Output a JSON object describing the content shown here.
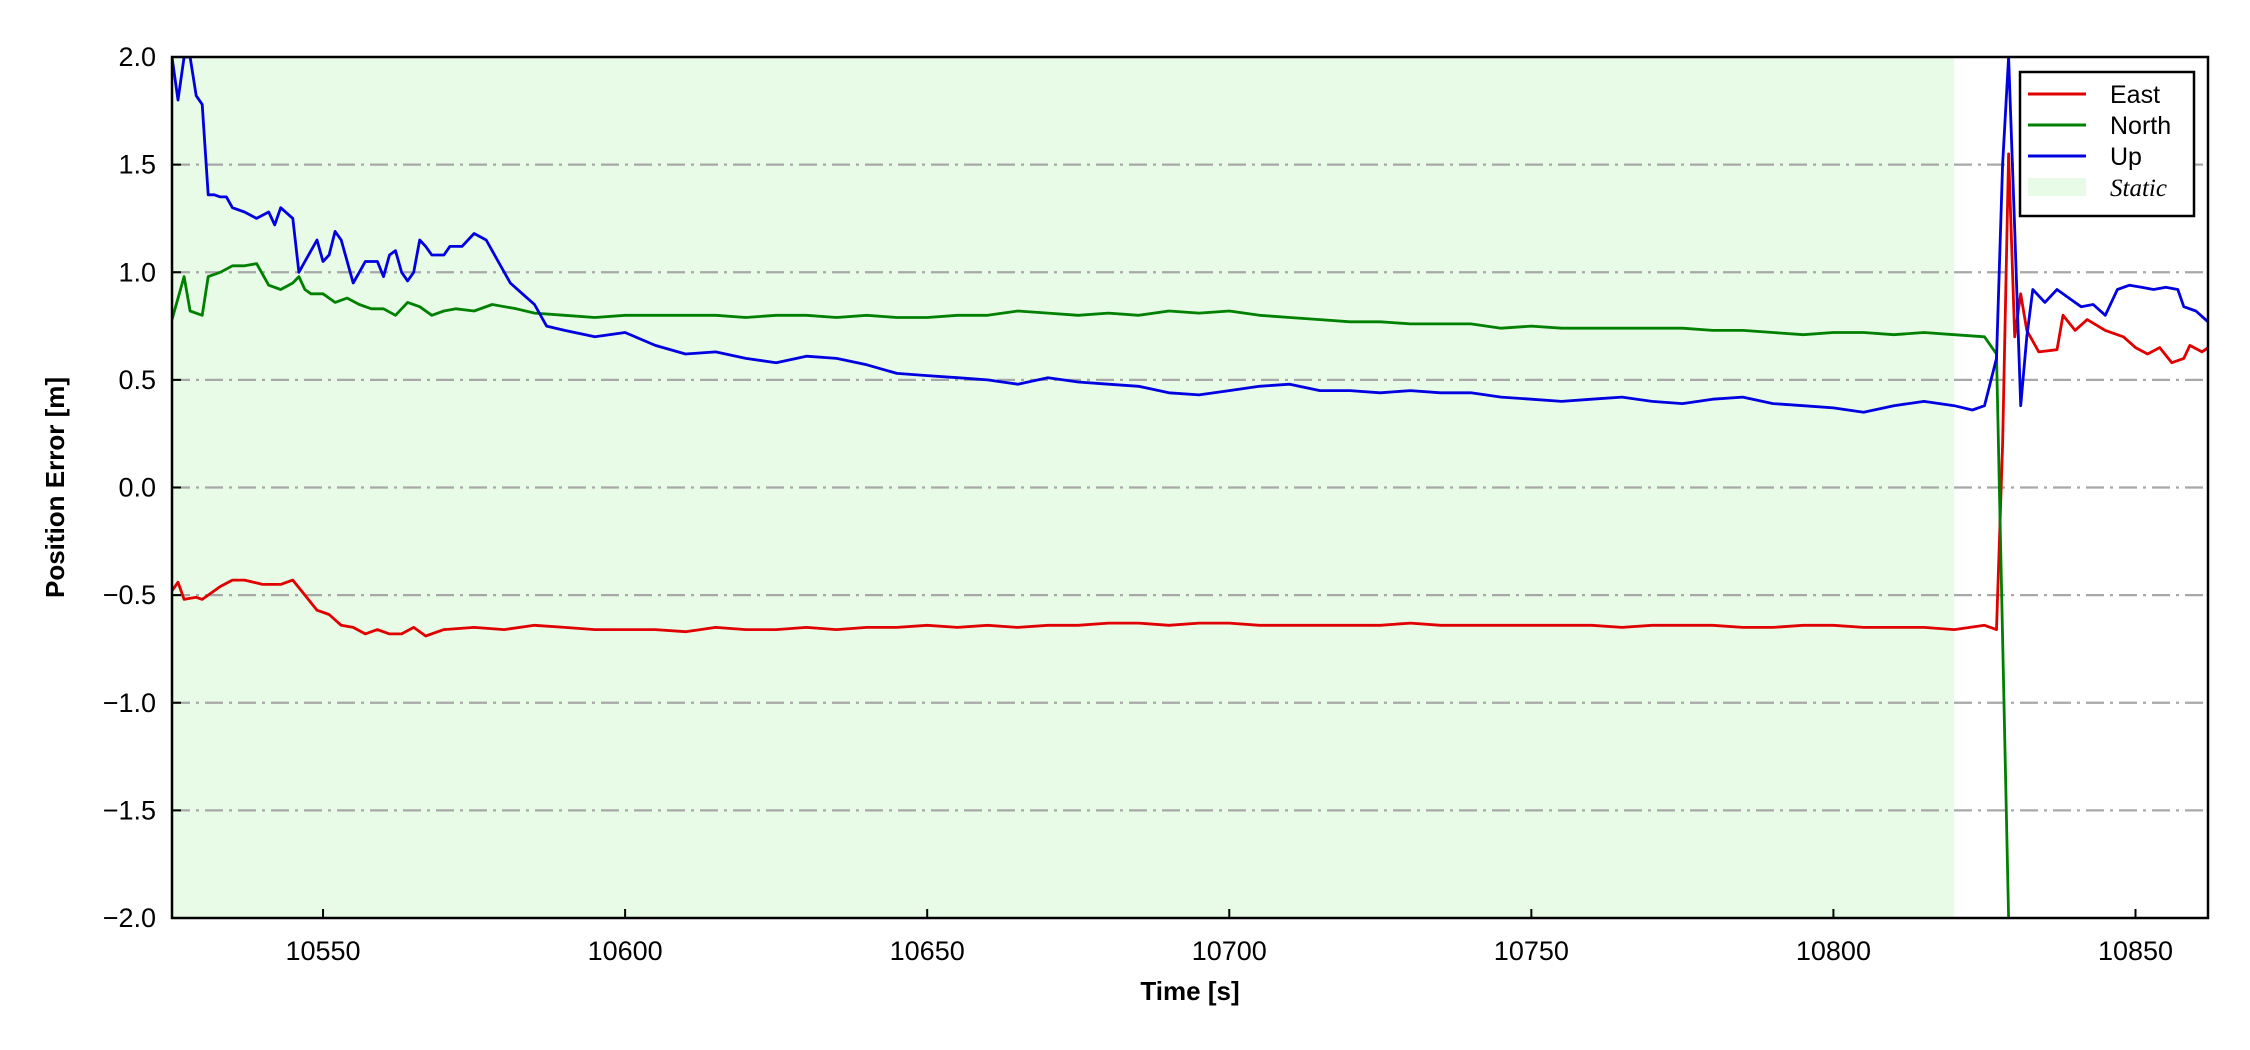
{
  "chart_data": {
    "type": "line",
    "title": "",
    "xlabel": "Time [s]",
    "ylabel": "Position Error [m]",
    "xlim": [
      10525,
      10862
    ],
    "ylim": [
      -2.0,
      2.0
    ],
    "x_ticks": [
      10550,
      10600,
      10650,
      10700,
      10750,
      10800,
      10850
    ],
    "x_tick_labels": [
      "10550",
      "10600",
      "10650",
      "10700",
      "10750",
      "10800",
      "10850"
    ],
    "y_ticks": [
      2.0,
      1.5,
      1.0,
      0.5,
      0.0,
      -0.5,
      -1.0,
      -1.5,
      -2.0
    ],
    "y_tick_labels": [
      "2.0",
      "1.5",
      "1.0",
      "0.5",
      "0.0",
      "−0.5",
      "−1.0",
      "−1.5",
      "−2.0"
    ],
    "grid": "horizontal dash-dot",
    "legend_position": "top-right",
    "static_region": {
      "label": "Static",
      "x_start": 10525,
      "x_end": 10820,
      "color": "#e8fbe6"
    },
    "series": [
      {
        "name": "East",
        "color": "#e00000",
        "points": [
          [
            10525,
            -0.48
          ],
          [
            10526,
            -0.44
          ],
          [
            10527,
            -0.52
          ],
          [
            10529,
            -0.51
          ],
          [
            10530,
            -0.52
          ],
          [
            10533,
            -0.46
          ],
          [
            10535,
            -0.43
          ],
          [
            10537,
            -0.43
          ],
          [
            10540,
            -0.45
          ],
          [
            10543,
            -0.45
          ],
          [
            10545,
            -0.43
          ],
          [
            10547,
            -0.5
          ],
          [
            10549,
            -0.57
          ],
          [
            10551,
            -0.59
          ],
          [
            10553,
            -0.64
          ],
          [
            10555,
            -0.65
          ],
          [
            10557,
            -0.68
          ],
          [
            10559,
            -0.66
          ],
          [
            10561,
            -0.68
          ],
          [
            10563,
            -0.68
          ],
          [
            10565,
            -0.65
          ],
          [
            10567,
            -0.69
          ],
          [
            10570,
            -0.66
          ],
          [
            10575,
            -0.65
          ],
          [
            10580,
            -0.66
          ],
          [
            10585,
            -0.64
          ],
          [
            10590,
            -0.65
          ],
          [
            10595,
            -0.66
          ],
          [
            10600,
            -0.66
          ],
          [
            10605,
            -0.66
          ],
          [
            10610,
            -0.67
          ],
          [
            10615,
            -0.65
          ],
          [
            10620,
            -0.66
          ],
          [
            10625,
            -0.66
          ],
          [
            10630,
            -0.65
          ],
          [
            10635,
            -0.66
          ],
          [
            10640,
            -0.65
          ],
          [
            10645,
            -0.65
          ],
          [
            10650,
            -0.64
          ],
          [
            10655,
            -0.65
          ],
          [
            10660,
            -0.64
          ],
          [
            10665,
            -0.65
          ],
          [
            10670,
            -0.64
          ],
          [
            10675,
            -0.64
          ],
          [
            10680,
            -0.63
          ],
          [
            10685,
            -0.63
          ],
          [
            10690,
            -0.64
          ],
          [
            10695,
            -0.63
          ],
          [
            10700,
            -0.63
          ],
          [
            10705,
            -0.64
          ],
          [
            10710,
            -0.64
          ],
          [
            10715,
            -0.64
          ],
          [
            10720,
            -0.64
          ],
          [
            10725,
            -0.64
          ],
          [
            10730,
            -0.63
          ],
          [
            10735,
            -0.64
          ],
          [
            10740,
            -0.64
          ],
          [
            10745,
            -0.64
          ],
          [
            10750,
            -0.64
          ],
          [
            10755,
            -0.64
          ],
          [
            10760,
            -0.64
          ],
          [
            10765,
            -0.65
          ],
          [
            10770,
            -0.64
          ],
          [
            10775,
            -0.64
          ],
          [
            10780,
            -0.64
          ],
          [
            10785,
            -0.65
          ],
          [
            10790,
            -0.65
          ],
          [
            10795,
            -0.64
          ],
          [
            10800,
            -0.64
          ],
          [
            10805,
            -0.65
          ],
          [
            10810,
            -0.65
          ],
          [
            10815,
            -0.65
          ],
          [
            10820,
            -0.66
          ],
          [
            10825,
            -0.64
          ],
          [
            10827,
            -0.66
          ],
          [
            10828,
            0.2
          ],
          [
            10829,
            1.55
          ],
          [
            10830,
            0.7
          ],
          [
            10831,
            0.9
          ],
          [
            10832,
            0.73
          ],
          [
            10834,
            0.63
          ],
          [
            10837,
            0.64
          ],
          [
            10838,
            0.8
          ],
          [
            10840,
            0.73
          ],
          [
            10842,
            0.78
          ],
          [
            10845,
            0.73
          ],
          [
            10848,
            0.7
          ],
          [
            10850,
            0.65
          ],
          [
            10852,
            0.62
          ],
          [
            10854,
            0.65
          ],
          [
            10856,
            0.58
          ],
          [
            10858,
            0.6
          ],
          [
            10859,
            0.66
          ],
          [
            10861,
            0.63
          ],
          [
            10862,
            0.65
          ]
        ]
      },
      {
        "name": "North",
        "color": "#008000",
        "points": [
          [
            10525,
            0.78
          ],
          [
            10527,
            0.98
          ],
          [
            10528,
            0.82
          ],
          [
            10530,
            0.8
          ],
          [
            10531,
            0.98
          ],
          [
            10533,
            1.0
          ],
          [
            10535,
            1.03
          ],
          [
            10537,
            1.03
          ],
          [
            10539,
            1.04
          ],
          [
            10541,
            0.94
          ],
          [
            10543,
            0.92
          ],
          [
            10545,
            0.95
          ],
          [
            10546,
            0.98
          ],
          [
            10547,
            0.92
          ],
          [
            10548,
            0.9
          ],
          [
            10550,
            0.9
          ],
          [
            10552,
            0.86
          ],
          [
            10554,
            0.88
          ],
          [
            10556,
            0.85
          ],
          [
            10558,
            0.83
          ],
          [
            10560,
            0.83
          ],
          [
            10562,
            0.8
          ],
          [
            10564,
            0.86
          ],
          [
            10566,
            0.84
          ],
          [
            10568,
            0.8
          ],
          [
            10570,
            0.82
          ],
          [
            10572,
            0.83
          ],
          [
            10575,
            0.82
          ],
          [
            10578,
            0.85
          ],
          [
            10582,
            0.83
          ],
          [
            10585,
            0.81
          ],
          [
            10590,
            0.8
          ],
          [
            10595,
            0.79
          ],
          [
            10600,
            0.8
          ],
          [
            10605,
            0.8
          ],
          [
            10610,
            0.8
          ],
          [
            10615,
            0.8
          ],
          [
            10620,
            0.79
          ],
          [
            10625,
            0.8
          ],
          [
            10630,
            0.8
          ],
          [
            10635,
            0.79
          ],
          [
            10640,
            0.8
          ],
          [
            10645,
            0.79
          ],
          [
            10650,
            0.79
          ],
          [
            10655,
            0.8
          ],
          [
            10660,
            0.8
          ],
          [
            10665,
            0.82
          ],
          [
            10670,
            0.81
          ],
          [
            10675,
            0.8
          ],
          [
            10680,
            0.81
          ],
          [
            10685,
            0.8
          ],
          [
            10690,
            0.82
          ],
          [
            10695,
            0.81
          ],
          [
            10700,
            0.82
          ],
          [
            10705,
            0.8
          ],
          [
            10710,
            0.79
          ],
          [
            10715,
            0.78
          ],
          [
            10720,
            0.77
          ],
          [
            10725,
            0.77
          ],
          [
            10730,
            0.76
          ],
          [
            10735,
            0.76
          ],
          [
            10740,
            0.76
          ],
          [
            10745,
            0.74
          ],
          [
            10750,
            0.75
          ],
          [
            10755,
            0.74
          ],
          [
            10760,
            0.74
          ],
          [
            10765,
            0.74
          ],
          [
            10770,
            0.74
          ],
          [
            10775,
            0.74
          ],
          [
            10780,
            0.73
          ],
          [
            10785,
            0.73
          ],
          [
            10790,
            0.72
          ],
          [
            10795,
            0.71
          ],
          [
            10800,
            0.72
          ],
          [
            10805,
            0.72
          ],
          [
            10810,
            0.71
          ],
          [
            10815,
            0.72
          ],
          [
            10820,
            0.71
          ],
          [
            10825,
            0.7
          ],
          [
            10827,
            0.62
          ],
          [
            10829,
            -2.0
          ]
        ]
      },
      {
        "name": "Up",
        "color": "#0000e0",
        "points": [
          [
            10525,
            2.0
          ],
          [
            10526,
            1.8
          ],
          [
            10527,
            2.0
          ],
          [
            10528,
            2.0
          ],
          [
            10529,
            1.82
          ],
          [
            10530,
            1.78
          ],
          [
            10531,
            1.36
          ],
          [
            10532,
            1.36
          ],
          [
            10533,
            1.35
          ],
          [
            10534,
            1.35
          ],
          [
            10535,
            1.3
          ],
          [
            10537,
            1.28
          ],
          [
            10539,
            1.25
          ],
          [
            10541,
            1.28
          ],
          [
            10542,
            1.22
          ],
          [
            10543,
            1.3
          ],
          [
            10545,
            1.25
          ],
          [
            10546,
            1.0
          ],
          [
            10547,
            1.05
          ],
          [
            10548,
            1.1
          ],
          [
            10549,
            1.15
          ],
          [
            10550,
            1.05
          ],
          [
            10551,
            1.08
          ],
          [
            10552,
            1.19
          ],
          [
            10553,
            1.15
          ],
          [
            10555,
            0.95
          ],
          [
            10556,
            1.0
          ],
          [
            10557,
            1.05
          ],
          [
            10559,
            1.05
          ],
          [
            10560,
            0.98
          ],
          [
            10561,
            1.08
          ],
          [
            10562,
            1.1
          ],
          [
            10563,
            1.0
          ],
          [
            10564,
            0.96
          ],
          [
            10565,
            1.0
          ],
          [
            10566,
            1.15
          ],
          [
            10567,
            1.12
          ],
          [
            10568,
            1.08
          ],
          [
            10570,
            1.08
          ],
          [
            10571,
            1.12
          ],
          [
            10573,
            1.12
          ],
          [
            10575,
            1.18
          ],
          [
            10577,
            1.15
          ],
          [
            10579,
            1.05
          ],
          [
            10581,
            0.95
          ],
          [
            10583,
            0.9
          ],
          [
            10585,
            0.85
          ],
          [
            10587,
            0.75
          ],
          [
            10590,
            0.73
          ],
          [
            10595,
            0.7
          ],
          [
            10600,
            0.72
          ],
          [
            10605,
            0.66
          ],
          [
            10610,
            0.62
          ],
          [
            10615,
            0.63
          ],
          [
            10620,
            0.6
          ],
          [
            10625,
            0.58
          ],
          [
            10630,
            0.61
          ],
          [
            10635,
            0.6
          ],
          [
            10640,
            0.57
          ],
          [
            10645,
            0.53
          ],
          [
            10650,
            0.52
          ],
          [
            10655,
            0.51
          ],
          [
            10660,
            0.5
          ],
          [
            10665,
            0.48
          ],
          [
            10670,
            0.51
          ],
          [
            10675,
            0.49
          ],
          [
            10680,
            0.48
          ],
          [
            10685,
            0.47
          ],
          [
            10690,
            0.44
          ],
          [
            10695,
            0.43
          ],
          [
            10700,
            0.45
          ],
          [
            10705,
            0.47
          ],
          [
            10710,
            0.48
          ],
          [
            10715,
            0.45
          ],
          [
            10720,
            0.45
          ],
          [
            10725,
            0.44
          ],
          [
            10730,
            0.45
          ],
          [
            10735,
            0.44
          ],
          [
            10740,
            0.44
          ],
          [
            10745,
            0.42
          ],
          [
            10750,
            0.41
          ],
          [
            10755,
            0.4
          ],
          [
            10760,
            0.41
          ],
          [
            10765,
            0.42
          ],
          [
            10770,
            0.4
          ],
          [
            10775,
            0.39
          ],
          [
            10780,
            0.41
          ],
          [
            10785,
            0.42
          ],
          [
            10790,
            0.39
          ],
          [
            10795,
            0.38
          ],
          [
            10800,
            0.37
          ],
          [
            10805,
            0.35
          ],
          [
            10810,
            0.38
          ],
          [
            10815,
            0.4
          ],
          [
            10820,
            0.38
          ],
          [
            10823,
            0.36
          ],
          [
            10825,
            0.38
          ],
          [
            10827,
            0.6
          ],
          [
            10828,
            1.5
          ],
          [
            10829,
            2.0
          ],
          [
            10830,
            1.2
          ],
          [
            10831,
            0.38
          ],
          [
            10832,
            0.7
          ],
          [
            10833,
            0.92
          ],
          [
            10835,
            0.86
          ],
          [
            10837,
            0.92
          ],
          [
            10839,
            0.88
          ],
          [
            10841,
            0.84
          ],
          [
            10843,
            0.85
          ],
          [
            10845,
            0.8
          ],
          [
            10847,
            0.92
          ],
          [
            10849,
            0.94
          ],
          [
            10851,
            0.93
          ],
          [
            10853,
            0.92
          ],
          [
            10855,
            0.93
          ],
          [
            10857,
            0.92
          ],
          [
            10858,
            0.84
          ],
          [
            10860,
            0.82
          ],
          [
            10862,
            0.77
          ]
        ]
      }
    ]
  },
  "legend": {
    "items": [
      {
        "label": "East",
        "kind": "line",
        "color": "#e00000"
      },
      {
        "label": "North",
        "kind": "line",
        "color": "#008000"
      },
      {
        "label": "Up",
        "kind": "line",
        "color": "#0000e0"
      },
      {
        "label": "Static",
        "kind": "patch",
        "color": "#e8fbe6"
      }
    ]
  }
}
